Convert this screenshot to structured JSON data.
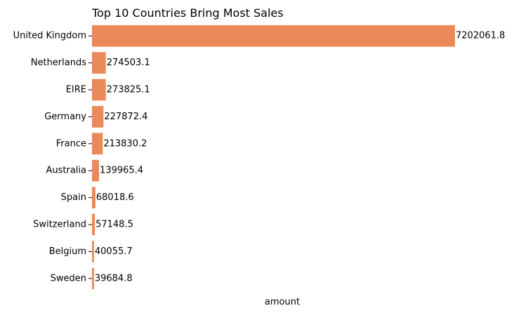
{
  "chart_data": {
    "type": "bar",
    "orientation": "horizontal",
    "title": "Top 10 Countries Bring Most Sales",
    "xlabel": "amount",
    "ylabel": "",
    "categories": [
      "United Kingdom",
      "Netherlands",
      "EIRE",
      "Germany",
      "France",
      "Australia",
      "Spain",
      "Switzerland",
      "Belgium",
      "Sweden"
    ],
    "values": [
      7202061.8,
      274503.1,
      273825.1,
      227872.4,
      213830.2,
      139965.4,
      68018.6,
      57148.5,
      40055.7,
      39684.8
    ],
    "value_labels": [
      "7202061.8",
      "274503.1",
      "273825.1",
      "227872.4",
      "213830.2",
      "139965.4",
      "68018.6",
      "57148.5",
      "40055.7",
      "39684.8"
    ],
    "xlim": [
      0,
      7202061.8
    ],
    "bar_color": "#ea8a58",
    "grid": false,
    "legend": "none"
  }
}
